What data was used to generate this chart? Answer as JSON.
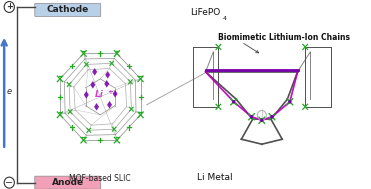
{
  "cathode_label": "Cathode",
  "anode_label": "Anode",
  "cathode_material": "LiFePO",
  "cathode_sub": "4",
  "anode_material": "Li Metal",
  "mof_label": "MOF-based SLIC",
  "li_label": "Li",
  "li_sup": "+",
  "bio_label": "Biomimetic Lithium-Ion Chains",
  "e_label": "e",
  "cathode_color": "#b8d0e8",
  "anode_color": "#f2a0b8",
  "arrow_color": "#4477cc",
  "bg_color": "#ffffff",
  "purple_color": "#7700aa",
  "green_color": "#22aa22",
  "gray_color": "#909090",
  "dark_gray": "#505050",
  "magenta_color": "#bb00bb",
  "bracket_color": "#444444",
  "fig_width": 3.71,
  "fig_height": 1.89,
  "dpi": 100
}
